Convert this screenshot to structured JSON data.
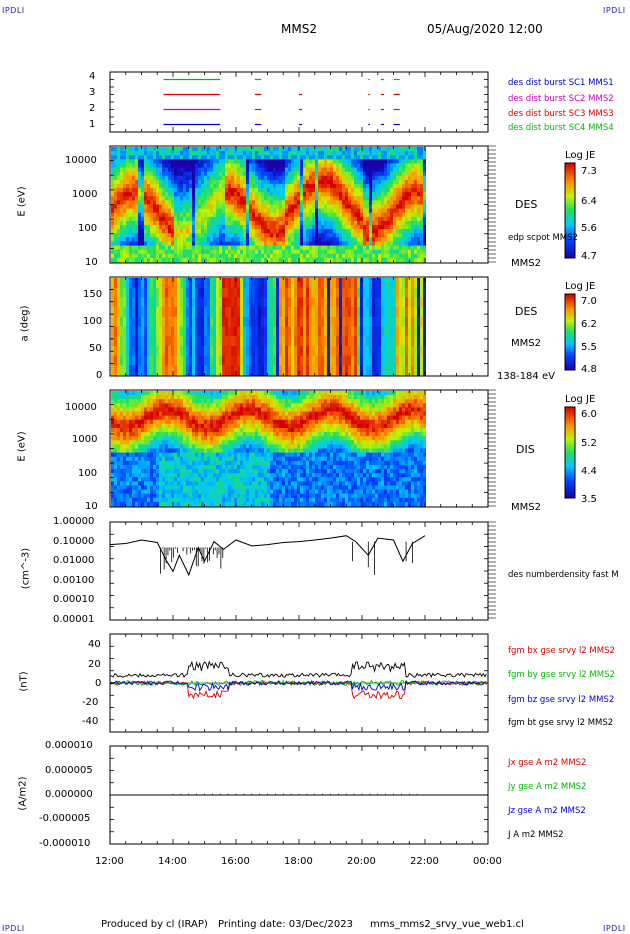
{
  "header": {
    "corner_mark": "IPDLI",
    "spacecraft": "MMS2",
    "datetime": "05/Aug/2020 12:00"
  },
  "footer": {
    "produced_by": "Produced by cl (IRAP)",
    "printing_date": "Printing date: 03/Dec/2023",
    "filename": "mms_mms2_srvy_vue_web1.cl"
  },
  "colors": {
    "c1": "#0000cc",
    "c2": "#cc00cc",
    "c3": "#dd0000",
    "c4": "#00bb00",
    "bx": "#dd0000",
    "by": "#00bb00",
    "bz": "#0000dd",
    "bt": "#000000"
  },
  "chart_data": [
    {
      "type": "line",
      "panel": "burst",
      "ylim": [
        0.5,
        4.5
      ],
      "yticks": [
        "4",
        "3",
        "2",
        "1"
      ],
      "series": [
        {
          "name": "des dist burst SC1 MMS1",
          "color": "#0000cc",
          "level": 1
        },
        {
          "name": "des dist burst SC2 MMS2",
          "color": "#cc00cc",
          "level": 2
        },
        {
          "name": "des dist burst SC3 MMS3",
          "color": "#dd0000",
          "level": 3
        },
        {
          "name": "des dist burst SC4 MMS4",
          "color": "#00bb00",
          "level": 4
        }
      ]
    },
    {
      "type": "heatmap",
      "panel": "des_energy",
      "ylabel": "E (eV)",
      "yticks": [
        "10000",
        "1000",
        "100",
        "10"
      ],
      "species": "DES",
      "overlay": "edp scpot MMS2",
      "bottom_right": "MMS2",
      "colorbar": {
        "title": "Log JE",
        "ticks": [
          "7.3",
          "6.4",
          "5.6",
          "4.7"
        ]
      }
    },
    {
      "type": "heatmap",
      "panel": "des_pitch",
      "ylabel": "a (deg)",
      "yticks": [
        "150",
        "100",
        "50",
        "0"
      ],
      "species": "DES",
      "spacecraft": "MMS2",
      "energy_range": "138-184 eV",
      "colorbar": {
        "title": "Log JE",
        "ticks": [
          "7.0",
          "6.2",
          "5.5",
          "4.8"
        ]
      }
    },
    {
      "type": "heatmap",
      "panel": "dis_energy",
      "ylabel": "E (eV)",
      "yticks": [
        "10000",
        "1000",
        "100",
        "10"
      ],
      "species": "DIS",
      "bottom_right": "MMS2",
      "colorbar": {
        "title": "Log JE",
        "ticks": [
          "6.0",
          "5.2",
          "4.4",
          "3.5"
        ]
      }
    },
    {
      "type": "line",
      "panel": "density",
      "ylabel": "(cm^-3)",
      "yticks": [
        "1.00000",
        "0.10000",
        "0.01000",
        "0.00100",
        "0.00010",
        "0.00001"
      ],
      "series_label": "des numberdensity fast M",
      "x": [
        12.0,
        12.5,
        13.0,
        13.5,
        13.8,
        14.0,
        14.2,
        14.5,
        14.8,
        15.0,
        15.3,
        15.6,
        16.0,
        16.5,
        17.0,
        17.5,
        18.0,
        18.5,
        19.0,
        19.5,
        19.8,
        20.2,
        20.5,
        21.0,
        21.3,
        21.6,
        22.0
      ],
      "y": [
        0.07,
        0.08,
        0.12,
        0.09,
        0.01,
        0.003,
        0.02,
        0.002,
        0.05,
        0.01,
        0.1,
        0.04,
        0.12,
        0.06,
        0.07,
        0.09,
        0.1,
        0.12,
        0.15,
        0.2,
        0.1,
        0.02,
        0.15,
        0.12,
        0.01,
        0.08,
        0.2
      ]
    },
    {
      "type": "line",
      "panel": "fgm",
      "ylabel": "(nT)",
      "yticks": [
        "40",
        "20",
        "0",
        "-20",
        "-40"
      ],
      "ylim": [
        -50,
        50
      ],
      "series": [
        {
          "name": "fgm bx gse srvy l2 MMS2",
          "color": "#dd0000"
        },
        {
          "name": "fgm by gse srvy l2 MMS2",
          "color": "#00bb00"
        },
        {
          "name": "fgm bz gse srvy l2 MMS2",
          "color": "#0000dd"
        },
        {
          "name": "fgm bt gse srvy l2 MMS2",
          "color": "#000000"
        }
      ]
    },
    {
      "type": "line",
      "panel": "current",
      "ylabel": "(A/m2)",
      "yticks": [
        "0.000010",
        "0.000005",
        "0.000000",
        "-0.000005",
        "-0.000010"
      ],
      "ylim": [
        -1e-05,
        1e-05
      ],
      "series": [
        {
          "name": "Jx gse A m2 MMS2",
          "color": "#dd0000"
        },
        {
          "name": "Jy gse A m2 MMS2",
          "color": "#00bb00"
        },
        {
          "name": "Jz gse A m2 MMS2",
          "color": "#0000dd"
        },
        {
          "name": "J A m2 MMS2",
          "color": "#000000"
        }
      ]
    }
  ],
  "xaxis": {
    "ticks": [
      "12:00",
      "14:00",
      "16:00",
      "18:00",
      "20:00",
      "22:00",
      "00:00"
    ]
  }
}
